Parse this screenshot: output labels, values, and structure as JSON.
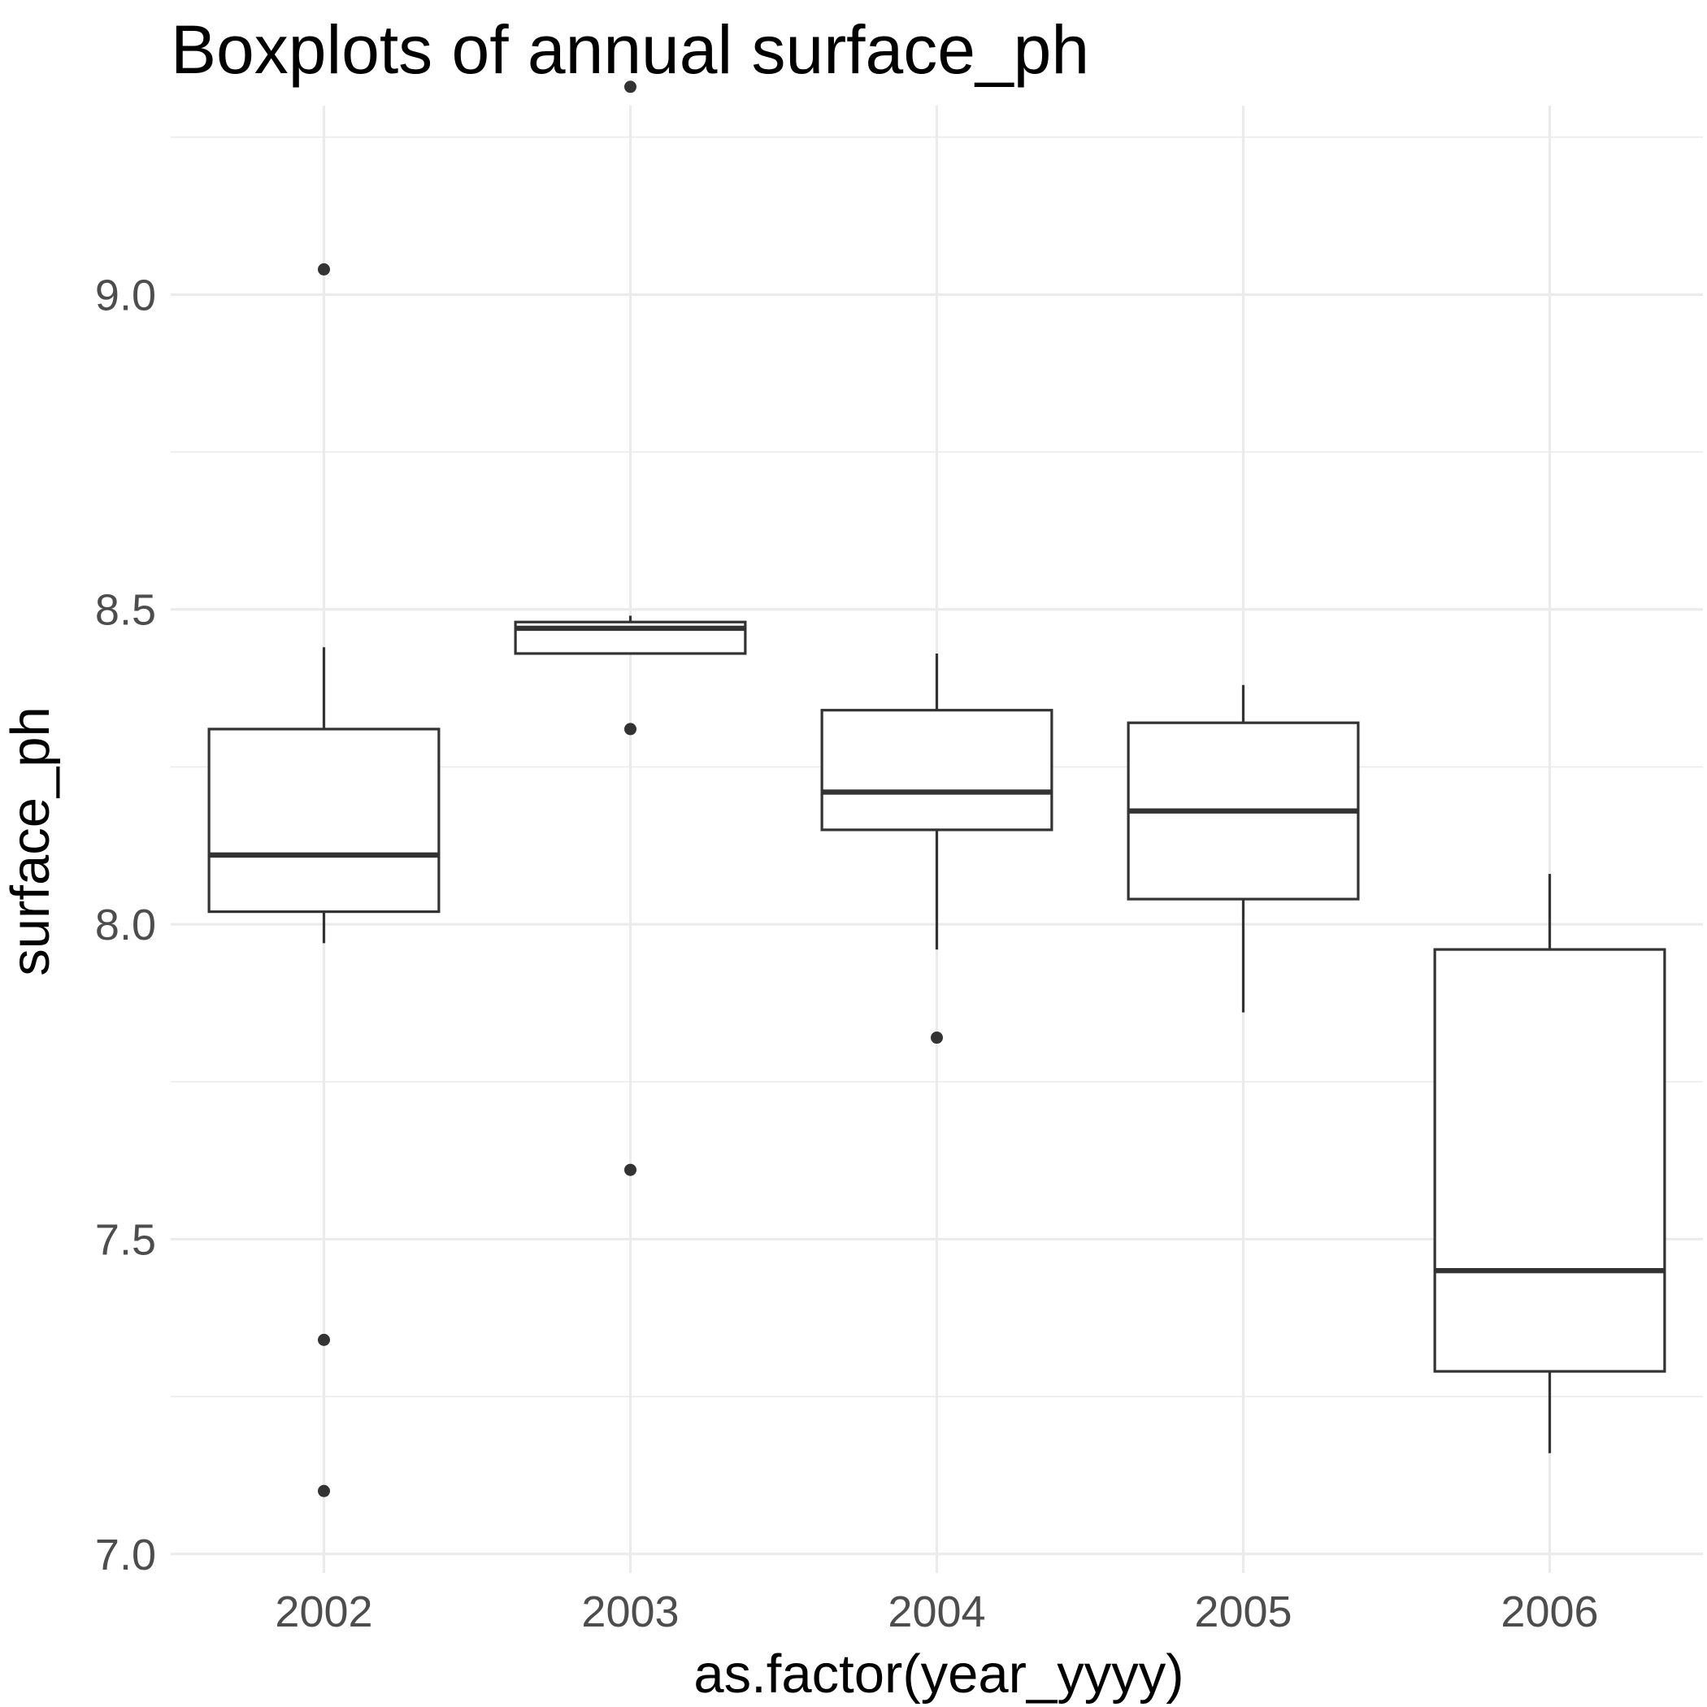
{
  "chart_data": {
    "type": "boxplot",
    "title": "Boxplots of annual surface_ph",
    "xlabel": "as.factor(year_yyyy)",
    "ylabel": "surface_ph",
    "ylim": [
      6.97,
      9.3
    ],
    "yticks": [
      7.0,
      7.5,
      8.0,
      8.5,
      9.0
    ],
    "ytick_labels": [
      "7.0",
      "7.5",
      "8.0",
      "8.5",
      "9.0"
    ],
    "y_minor_ticks": [
      7.25,
      7.75,
      8.25,
      8.75,
      9.25
    ],
    "grid": true,
    "legend": "none",
    "colors": {
      "box_fill": "#ffffff",
      "box_stroke": "#333333",
      "grid": "#ebebeb",
      "tick_text": "#4d4d4d"
    },
    "categories": [
      "2002",
      "2003",
      "2004",
      "2005",
      "2006"
    ],
    "boxes": [
      {
        "category": "2002",
        "lower_whisker": 7.97,
        "q1": 8.02,
        "median": 8.11,
        "q3": 8.31,
        "upper_whisker": 8.44,
        "outliers": [
          9.04,
          7.34,
          7.1
        ]
      },
      {
        "category": "2003",
        "lower_whisker": 8.43,
        "q1": 8.43,
        "median": 8.47,
        "q3": 8.48,
        "upper_whisker": 8.49,
        "outliers": [
          9.33,
          8.31,
          7.61
        ]
      },
      {
        "category": "2004",
        "lower_whisker": 7.96,
        "q1": 8.15,
        "median": 8.21,
        "q3": 8.34,
        "upper_whisker": 8.43,
        "outliers": [
          7.82
        ]
      },
      {
        "category": "2005",
        "lower_whisker": 7.86,
        "q1": 8.04,
        "median": 8.18,
        "q3": 8.32,
        "upper_whisker": 8.38,
        "outliers": []
      },
      {
        "category": "2006",
        "lower_whisker": 7.16,
        "q1": 7.29,
        "median": 7.45,
        "q3": 7.96,
        "upper_whisker": 8.08,
        "outliers": []
      }
    ]
  }
}
